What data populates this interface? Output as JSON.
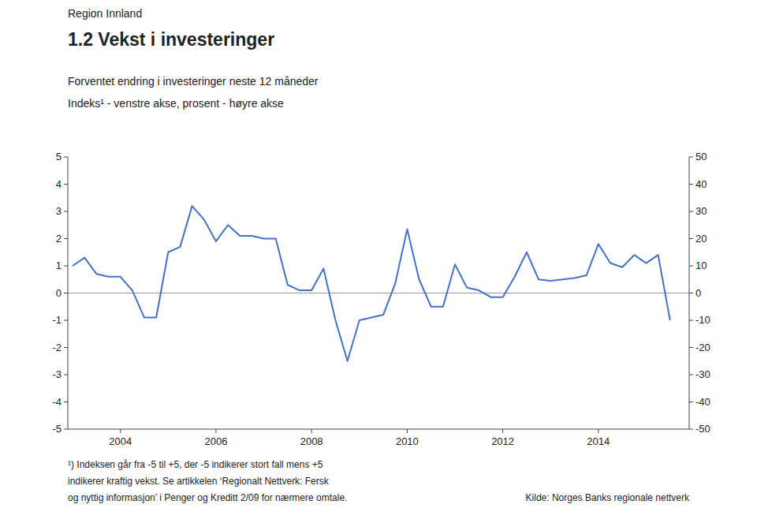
{
  "chart_data": {
    "type": "line",
    "title": "1.2  Vekst i investeringer",
    "subtitle": [
      "Forventet endring i investeringer neste 12 måneder",
      "Indeks¹ - venstre akse, prosent - høyre akse"
    ],
    "annotations": [
      "Region Innland",
      "¹) Indeksen går fra -5 til +5, der -5 indikerer stort fall mens +5",
      "indikerer kraftig vekst. Se artikkelen ‘Regionalt Nettverk: Fersk",
      "og nyttig informasjon’ i Penger og Kreditt 2/09 for nærmere omtale.",
      "Kilde: Norges Banks regionale nettverk"
    ],
    "color": "#4472C4",
    "grid": false,
    "x": [
      2003.0,
      2003.25,
      2003.5,
      2003.75,
      2004.0,
      2004.25,
      2004.5,
      2004.75,
      2005.0,
      2005.25,
      2005.5,
      2005.75,
      2006.0,
      2006.25,
      2006.5,
      2006.75,
      2007.0,
      2007.25,
      2007.5,
      2007.75,
      2008.0,
      2008.25,
      2008.5,
      2008.75,
      2009.0,
      2009.25,
      2009.5,
      2009.75,
      2010.0,
      2010.25,
      2010.5,
      2010.75,
      2011.0,
      2011.25,
      2011.5,
      2011.75,
      2012.0,
      2012.25,
      2012.5,
      2012.75,
      2013.0,
      2013.25,
      2013.5,
      2013.75,
      2014.0,
      2014.25,
      2014.5,
      2014.75,
      2015.0,
      2015.25,
      2015.5
    ],
    "values": [
      1.0,
      1.3,
      0.7,
      0.6,
      0.6,
      0.1,
      -0.9,
      -0.9,
      1.5,
      1.7,
      3.2,
      2.7,
      1.9,
      2.5,
      2.1,
      2.1,
      2.0,
      2.0,
      0.3,
      0.1,
      0.1,
      0.9,
      -1.0,
      -2.5,
      -1.0,
      -0.9,
      -0.8,
      0.35,
      2.35,
      0.5,
      -0.5,
      -0.5,
      1.05,
      0.2,
      0.1,
      -0.15,
      -0.15,
      0.6,
      1.5,
      0.5,
      0.45,
      0.5,
      0.55,
      0.65,
      1.8,
      1.1,
      0.95,
      1.4,
      1.1,
      1.4,
      -1.0
    ],
    "xlim": [
      2002.9,
      2015.9
    ],
    "xticks": [
      2004,
      2006,
      2008,
      2010,
      2012,
      2014
    ],
    "ylim": [
      -5,
      5
    ],
    "yticks": [
      -5,
      -4,
      -3,
      -2,
      -1,
      0,
      1,
      2,
      3,
      4,
      5
    ],
    "y2lim": [
      -50,
      50
    ],
    "y2ticks": [
      -50,
      -40,
      -30,
      -20,
      -10,
      0,
      10,
      20,
      30,
      40,
      50
    ]
  }
}
